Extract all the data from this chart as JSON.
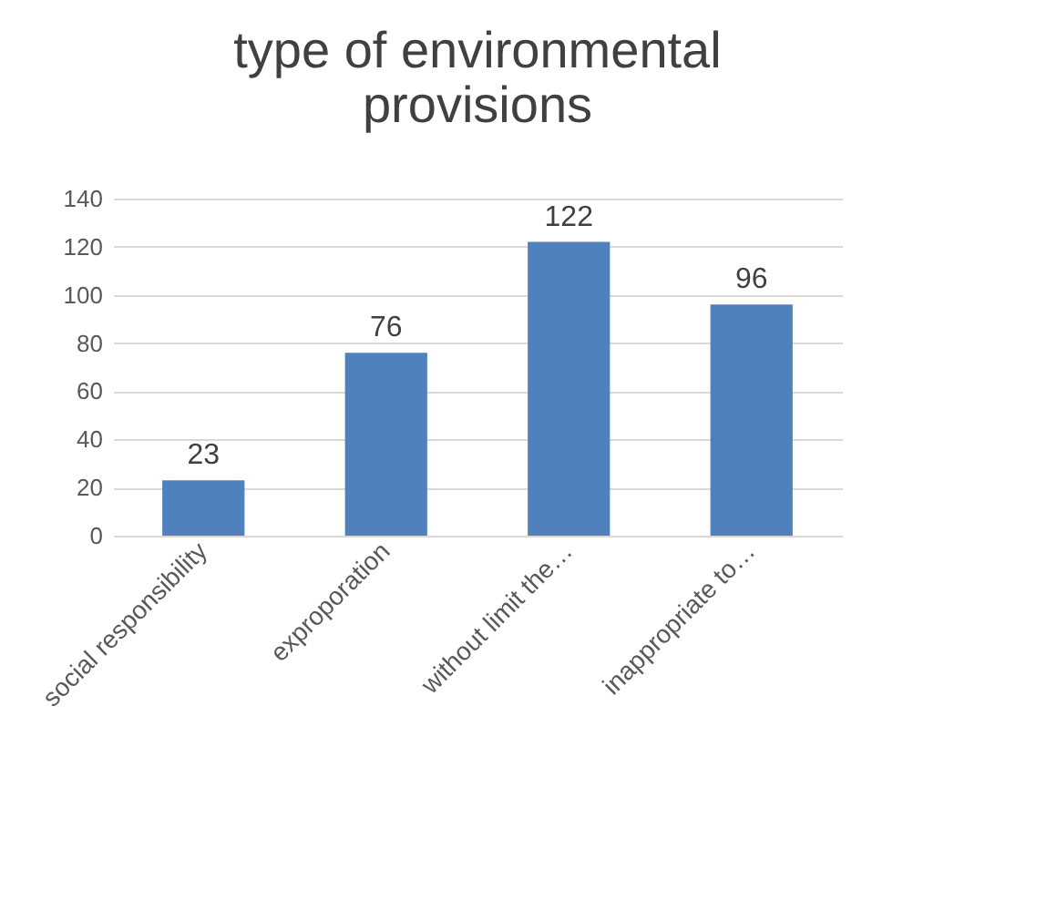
{
  "chart_data": {
    "type": "bar",
    "title": "type of environmental provisions",
    "categories": [
      "social responsibility",
      "exproporation",
      "without limit the…",
      "inappropriate to…"
    ],
    "values": [
      23,
      76,
      122,
      96
    ],
    "color": "#4f81bd",
    "ylim": [
      0,
      140
    ],
    "yticks": [
      0,
      20,
      40,
      60,
      80,
      100,
      120,
      140
    ],
    "grid": "y",
    "data_labels": true
  }
}
